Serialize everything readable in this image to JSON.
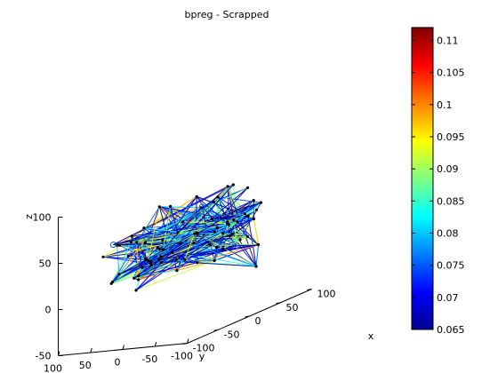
{
  "chart_data": {
    "type": "3d-network",
    "title": "bpreg - Scrapped",
    "xlabel": "x",
    "ylabel": "y",
    "zlabel": "z",
    "xlim": [
      -100,
      100
    ],
    "ylim": [
      -100,
      100
    ],
    "zlim": [
      -50,
      100
    ],
    "x_ticks": [
      "-100",
      "-50",
      "0",
      "50",
      "100"
    ],
    "y_ticks": [
      "100",
      "50",
      "0",
      "-50",
      "-100"
    ],
    "z_ticks": [
      "-50",
      "0",
      "50",
      "100"
    ],
    "colorbar": {
      "min": 0.065,
      "max": 0.112,
      "colormap": "jet",
      "ticks": [
        "0.11",
        "0.105",
        "0.1",
        "0.095",
        "0.09",
        "0.085",
        "0.08",
        "0.075",
        "0.07",
        "0.065"
      ]
    },
    "edge_color_range": [
      0.065,
      0.1
    ]
  }
}
